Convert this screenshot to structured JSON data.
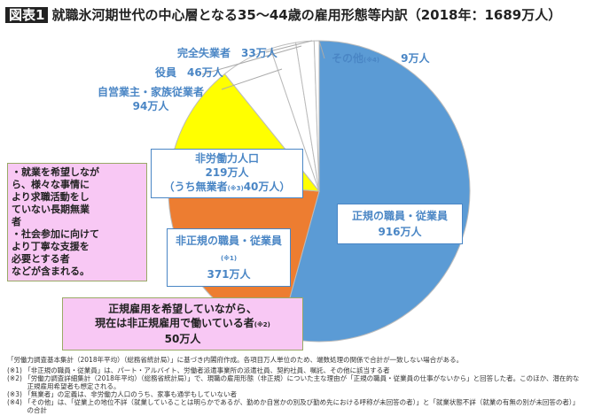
{
  "title": {
    "badge": "図表1",
    "text": "就職氷河期世代の中心層となる35〜44歳の雇用形態等内訳（2018年：1689万人）"
  },
  "chart_data": {
    "type": "pie",
    "unit": "万人",
    "total": 1689,
    "slices": [
      {
        "name": "正規の職員・従業員",
        "value": 916,
        "label": "916万人",
        "color": "#5b9bd5"
      },
      {
        "name": "非正規の職員・従業員",
        "value": 371,
        "label": "371万人",
        "note": "(※1)",
        "color": "#ed7d31"
      },
      {
        "name": "非労働力人口",
        "value": 219,
        "label": "219万人",
        "sub": "（うち無業者",
        "sub_note": "(※3)",
        "sub_value": "40万人）",
        "color": "#ffff00"
      },
      {
        "name": "自営業主・家族従業者",
        "value": 94,
        "label": "94万人",
        "color": "#ffffff"
      },
      {
        "name": "役員",
        "value": 46,
        "label": "46万人",
        "color": "#ffffff"
      },
      {
        "name": "完全失業者",
        "value": 33,
        "label": "33万人",
        "color": "#ffffff"
      },
      {
        "name": "その他",
        "value": 9,
        "label": "9万人",
        "note": "(※4)",
        "color": "#ffffff"
      }
    ]
  },
  "callouts": {
    "nonlabor": [
      "・就業を希望しなが",
      "ら、様々な事情に",
      "より求職活動をし",
      "ていない長期無業",
      "者",
      "・社会参加に向けて",
      "より丁寧な支援を",
      "必要とする者",
      "などが含まれる。"
    ],
    "irregular": {
      "line1": "正規雇用を希望していながら、",
      "line2": "現在は非正規雇用で働いている者",
      "note": "(※2)",
      "value": "50万人"
    }
  },
  "notes": [
    "「労働力調査基本集計（2018年平均）（総務省統計局）」に基づき内閣府作成。各項目万人単位のため、端数処理の関係で合計が一致しない場合がある。",
    "(※1) 「非正規の職員・従業員」は、パート・アルバイト、労働者派遣事業所の派遣社員、契約社員、嘱託、その他に該当する者",
    "(※2) 「労働力調査詳細集計（2018年平均）（総務省統計局）」で、現職の雇用形態（非正規）についた主な理由が「正規の職員・従業員の仕事がないから」と回答した者。このほか、潜在的な",
    "　　　正規雇用希望者も想定される。",
    "(※3) 「無業者」の定義は、非労働力人口のうち、家事も通学もしていない者",
    "(※4) 「その他」は、「従業上の地位不詳（就業していることは明らかであるが、勤めか自営かの別及び勤め先における呼称が未回答の者）」と「就業状態不詳（就業の有無の別が未回答の者）」",
    "　　　の合計"
  ]
}
